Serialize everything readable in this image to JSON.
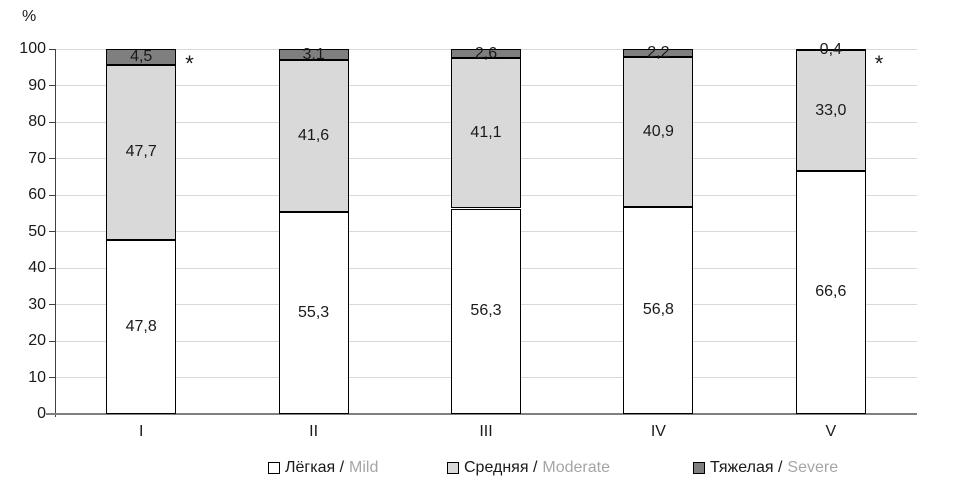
{
  "chart_data": {
    "type": "bar",
    "stacked": true,
    "title": "",
    "ylabel": "%",
    "xlabel": "",
    "ylim": [
      0,
      100
    ],
    "yticks": [
      0,
      10,
      20,
      30,
      40,
      50,
      60,
      70,
      80,
      90,
      100
    ],
    "grid": true,
    "legend_position": "bottom",
    "categories": [
      "I",
      "II",
      "III",
      "IV",
      "V"
    ],
    "series": [
      {
        "key": "mild",
        "name_ru": "Лёгкая /",
        "name_en": "Mild",
        "color": "#ffffff",
        "values": [
          47.8,
          55.3,
          56.3,
          56.8,
          66.6
        ],
        "labels": [
          "47,8",
          "55,3",
          "56,3",
          "56,8",
          "66,6"
        ]
      },
      {
        "key": "moderate",
        "name_ru": "Средняя /",
        "name_en": "Moderate",
        "color": "#d9d9d9",
        "values": [
          47.7,
          41.6,
          41.1,
          40.9,
          33.0
        ],
        "labels": [
          "47,7",
          "41,6",
          "41,1",
          "40,9",
          "33,0"
        ]
      },
      {
        "key": "severe",
        "name_ru": "Тяжелая /",
        "name_en": "Severe",
        "color": "#7f7f7f",
        "values": [
          4.5,
          3.1,
          2.6,
          2.2,
          0.4
        ],
        "labels": [
          "4,5",
          "3,1",
          "2,6",
          "2,2",
          "0,4"
        ]
      }
    ],
    "annotations": [
      {
        "category": "I",
        "text": "*"
      },
      {
        "category": "V",
        "text": "*"
      }
    ]
  },
  "colors": {
    "grid": "#d9d9d9",
    "axis_y": "#404040",
    "axis_x": "#808080",
    "bar_border": "#000000",
    "label": "#1a1a1a",
    "legend_en": "#a6a6a6"
  }
}
